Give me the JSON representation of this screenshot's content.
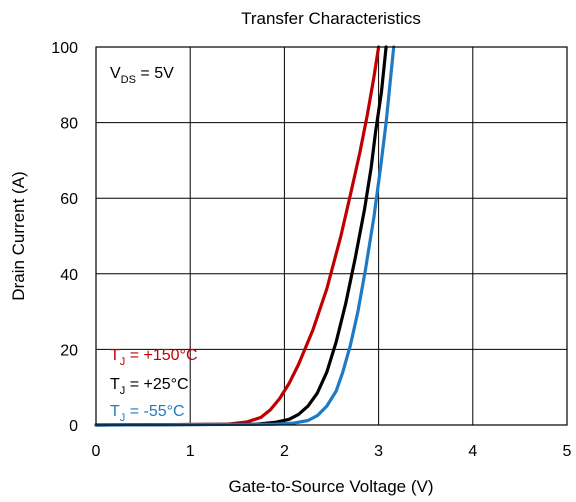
{
  "chart_data": {
    "type": "line",
    "title": "Transfer Characteristics",
    "xlabel": "Gate-to-Source Voltage (V)",
    "ylabel": "Drain Current (A)",
    "xlim": [
      0,
      5
    ],
    "ylim": [
      0,
      100
    ],
    "xticks": [
      "0",
      "1",
      "2",
      "3",
      "4",
      "5"
    ],
    "yticks": [
      "0",
      "20",
      "40",
      "60",
      "80",
      "100"
    ],
    "grid": true,
    "legend_position": "bottom-left",
    "condition": {
      "prefix": "V",
      "sub": "DS",
      "suffix": " = 5V"
    },
    "series": [
      {
        "name": "T_J = +150°C",
        "label_prefix": "T",
        "label_sub": "J",
        "label_suffix": " = +150°C",
        "color": "#c00000",
        "x": [
          0,
          1.4,
          1.6,
          1.75,
          1.85,
          1.95,
          2.05,
          2.15,
          2.3,
          2.45,
          2.6,
          2.72,
          2.8,
          2.88,
          2.95,
          3.0
        ],
        "y": [
          0,
          0.2,
          0.8,
          2,
          4,
          7,
          11,
          16,
          25,
          36,
          50,
          63,
          72,
          82,
          92,
          100
        ]
      },
      {
        "name": "T_J = +25°C",
        "label_prefix": "T",
        "label_sub": "J",
        "label_suffix": " = +25°C",
        "color": "#000000",
        "x": [
          0,
          1.7,
          1.9,
          2.05,
          2.15,
          2.25,
          2.35,
          2.45,
          2.55,
          2.65,
          2.75,
          2.85,
          2.92,
          2.97,
          3.03,
          3.08
        ],
        "y": [
          0,
          0.2,
          0.7,
          1.5,
          2.8,
          5,
          8.5,
          14,
          22,
          32,
          44,
          57,
          68,
          78,
          88,
          100
        ]
      },
      {
        "name": "T_J = -55°C",
        "label_prefix": "T",
        "label_sub": "J",
        "label_suffix": " = -55°C",
        "color": "#1f7ac4",
        "x": [
          0,
          1.9,
          2.1,
          2.25,
          2.35,
          2.45,
          2.55,
          2.62,
          2.7,
          2.78,
          2.86,
          2.95,
          3.02,
          3.08,
          3.12,
          3.16
        ],
        "y": [
          0,
          0.2,
          0.5,
          1.2,
          2.5,
          5,
          9,
          14,
          21,
          30,
          41,
          55,
          68,
          80,
          90,
          100
        ]
      }
    ]
  }
}
